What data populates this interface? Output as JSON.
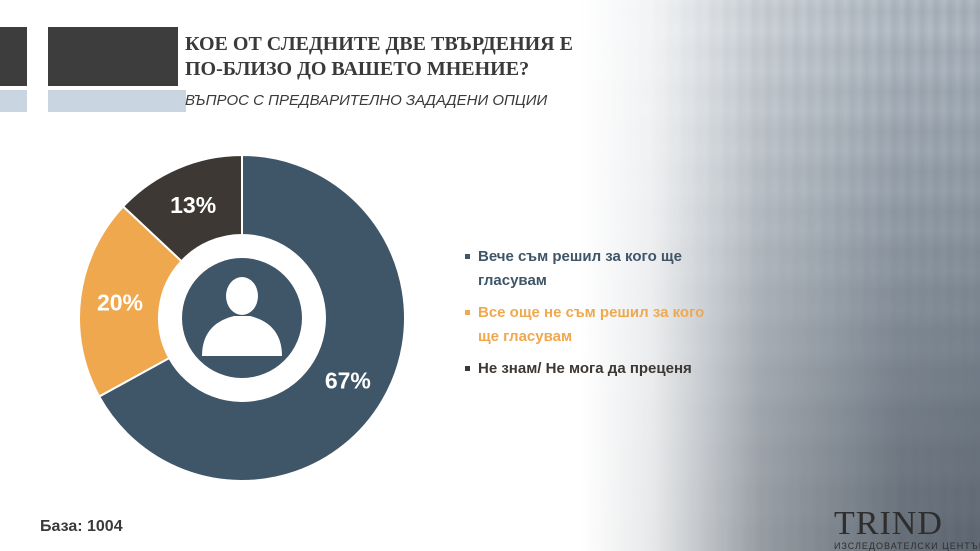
{
  "slide": {
    "title": "КОЕ ОТ СЛЕДНИТЕ ДВЕ ТВЪРДЕНИЯ Е ПО-БЛИЗО ДО ВАШЕТО МНЕНИЕ?",
    "subtitle": "ВЪПРОС С ПРЕДВАРИТЕЛНО ЗАДАДЕНИ ОПЦИИ",
    "base_label": "База: 1004",
    "logo_text": "TRIND",
    "logo_tagline": "ИЗСЛЕДОВАТЕЛСКИ ЦЕНТЪР"
  },
  "colors": {
    "decided": "#3f5568",
    "undecided": "#f0a84e",
    "dont_know": "#3d3833",
    "center_circle": "#3f5568",
    "center_ring": "#ffffff",
    "person_icon": "#ffffff"
  },
  "chart_data": {
    "type": "pie",
    "donut": true,
    "series": [
      {
        "name": "Вече съм решил за кого ще гласувам",
        "value": 67,
        "label": "67%",
        "color": "#3f5568"
      },
      {
        "name": "Все още не съм решил за кого ще гласувам",
        "value": 20,
        "label": "20%",
        "color": "#f0a84e"
      },
      {
        "name": "Не знам/ Не мога да преценя",
        "value": 13,
        "label": "13%",
        "color": "#3d3833"
      }
    ],
    "legend_position": "right",
    "center_icon": "person-icon"
  }
}
